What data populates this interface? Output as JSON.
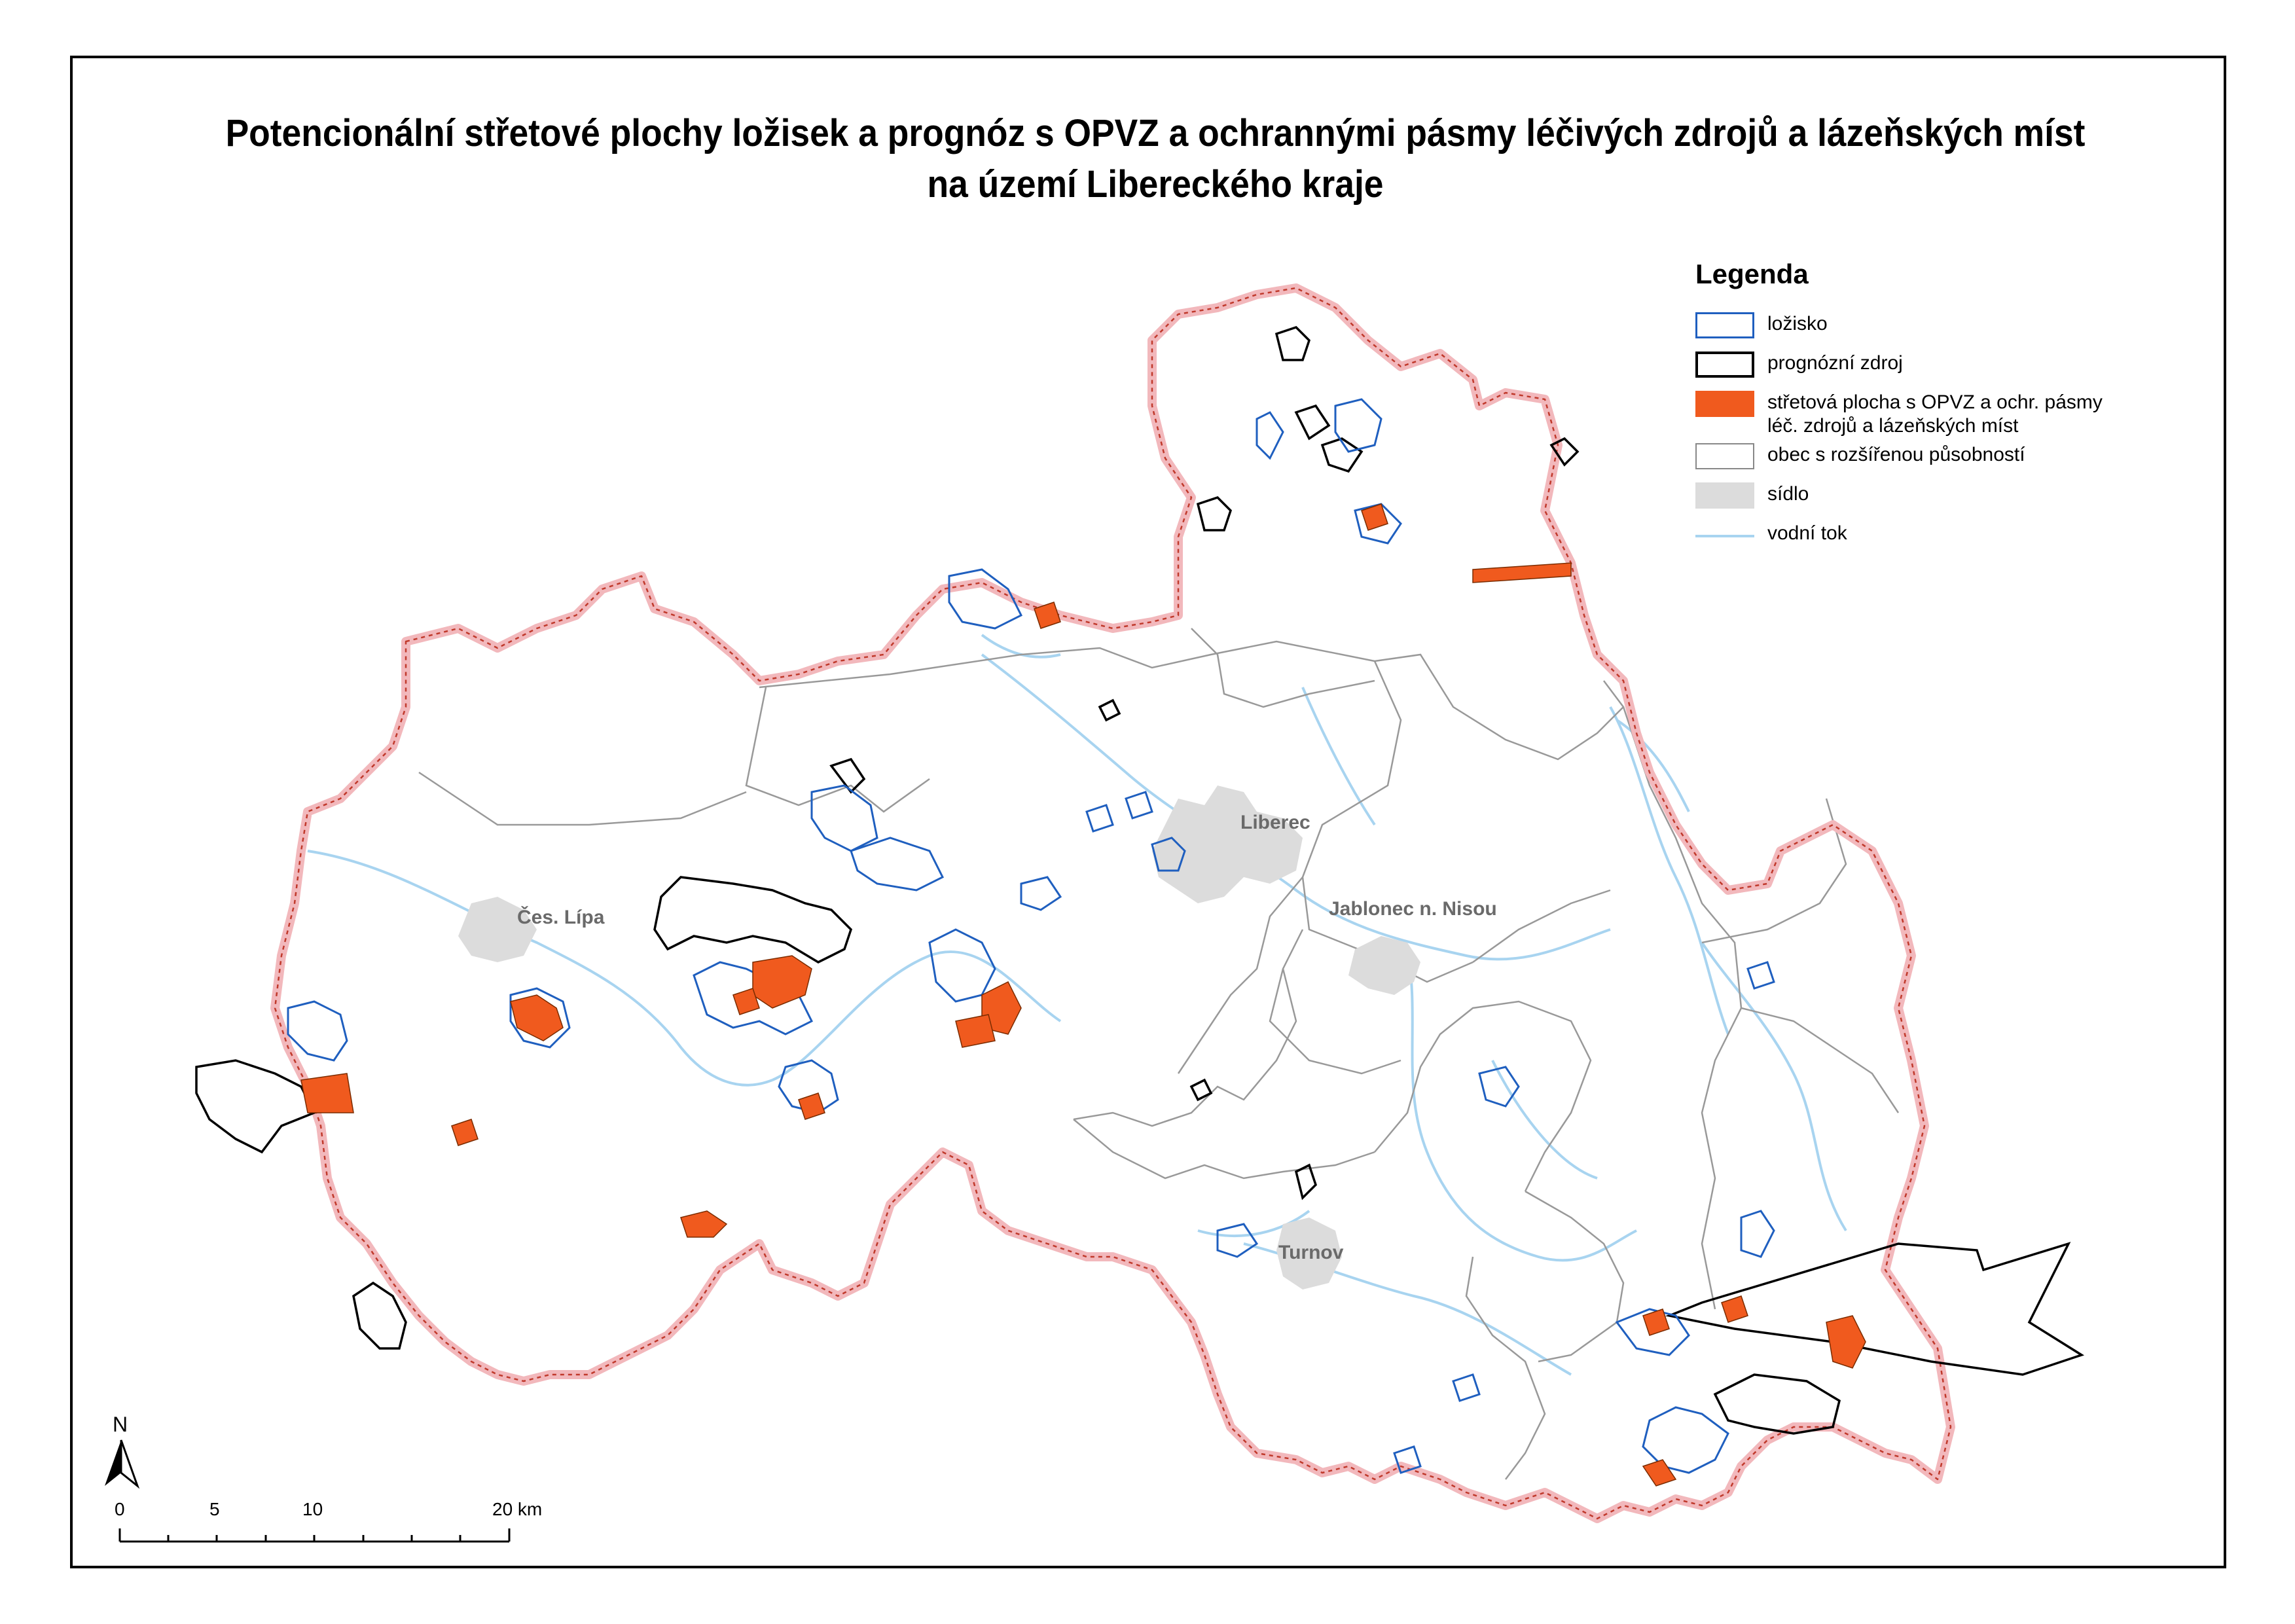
{
  "title": {
    "line1": "Potencionální střetové plochy ložisek a prognóz s OPVZ a ochrannými pásmy léčivých zdrojů a lázeňských míst",
    "line2": "na území Libereckého kraje"
  },
  "legend": {
    "heading": "Legenda",
    "items": [
      {
        "label": "ložisko",
        "color": "#1f5fbf"
      },
      {
        "label": "prognózní zdroj",
        "color": "#000000"
      },
      {
        "label": "střetová plocha s OPVZ a ochr. pásmy\nléč. zdrojů a lázeňských míst",
        "color": "#f05a1e"
      },
      {
        "label": "obec s rozšířenou působností",
        "color": "#888888"
      },
      {
        "label": "sídlo",
        "color": "#dcdcdc"
      },
      {
        "label": "vodní tok",
        "color": "#a8d4f0"
      }
    ]
  },
  "towns": {
    "ceska_lipa": "Čes. Lípa",
    "liberec": "Liberec",
    "jablonec": "Jablonec n. Nisou",
    "turnov": "Turnov"
  },
  "scale_bar": {
    "ticks": [
      "0",
      "5",
      "10",
      "20 km"
    ]
  },
  "north_arrow": {
    "label": "N"
  },
  "colors": {
    "boundary_halo": "#f2b8bc",
    "boundary_line": "#c0392b",
    "deposit": "#1f5fbf",
    "prognosis": "#000000",
    "conflict": "#f05a1e",
    "municipality": "#999999",
    "settlement": "#dcdcdc",
    "river": "#a8d4f0"
  }
}
